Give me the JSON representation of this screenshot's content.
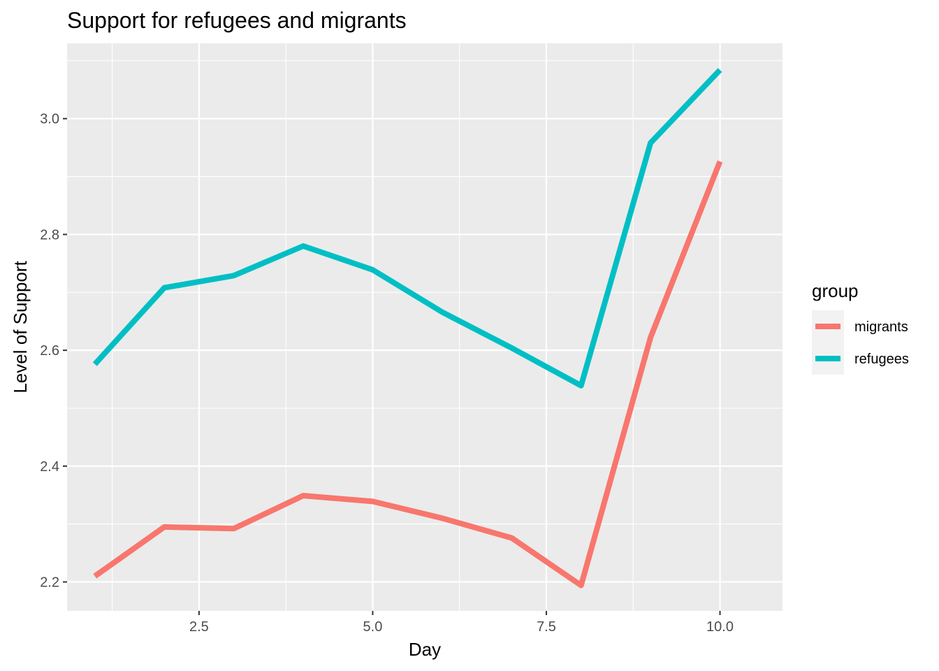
{
  "chart_data": {
    "type": "line",
    "title": "Support for refugees and migrants",
    "xlabel": "Day",
    "ylabel": "Level of Support",
    "xlim": [
      0.6,
      10.9
    ],
    "ylim": [
      2.15,
      3.13
    ],
    "x_ticks": [
      2.5,
      5.0,
      7.5,
      10.0
    ],
    "x_tick_labels": [
      "2.5",
      "5.0",
      "7.5",
      "10.0"
    ],
    "x_minor_ticks": [
      1.25,
      3.75,
      6.25,
      8.75
    ],
    "y_ticks": [
      2.2,
      2.4,
      2.6,
      2.8,
      3.0
    ],
    "y_tick_labels": [
      "2.2",
      "2.4",
      "2.6",
      "2.8",
      "3.0"
    ],
    "y_minor_ticks": [
      2.3,
      2.5,
      2.7,
      2.9,
      3.1
    ],
    "grid": true,
    "panel_background": "#ebebeb",
    "legend": {
      "title": "group",
      "position": "right"
    },
    "x": [
      1,
      2,
      3,
      4,
      5,
      6,
      7,
      8,
      9,
      10
    ],
    "series": [
      {
        "name": "migrants",
        "color": "#f8766d",
        "values": [
          2.21,
          2.295,
          2.292,
          2.349,
          2.339,
          2.31,
          2.276,
          2.194,
          2.622,
          2.926
        ]
      },
      {
        "name": "refugees",
        "color": "#00bfc4",
        "values": [
          2.576,
          2.708,
          2.729,
          2.78,
          2.739,
          2.666,
          2.604,
          2.539,
          2.958,
          3.084
        ]
      }
    ]
  }
}
